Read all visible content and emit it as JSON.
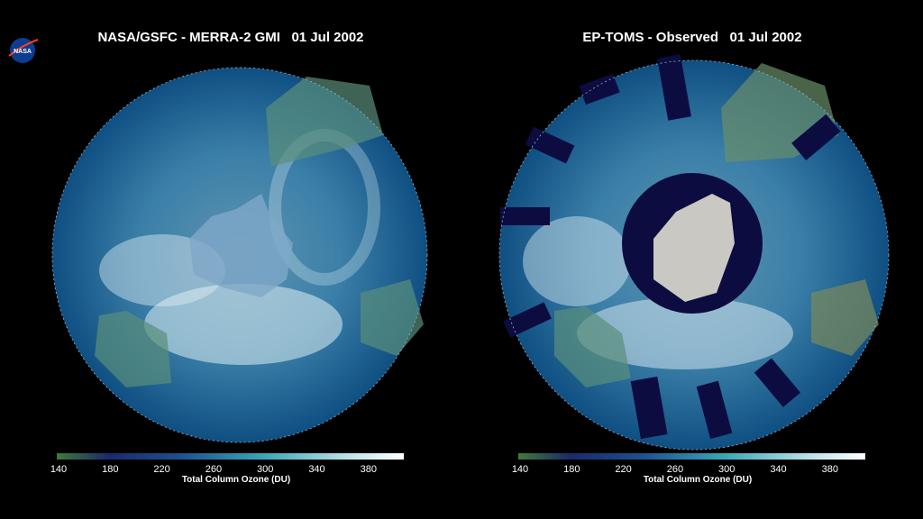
{
  "logo": "NASA",
  "panels": [
    {
      "title": "NASA/GSFC - MERRA-2 GMI   01 Jul 2002",
      "colorbar": {
        "ticks": [
          140,
          180,
          220,
          260,
          300,
          340,
          380
        ],
        "label": "Total Column Ozone (DU)"
      }
    },
    {
      "title": "EP-TOMS - Observed   01 Jul 2002",
      "colorbar": {
        "ticks": [
          140,
          180,
          220,
          260,
          300,
          340,
          380
        ],
        "label": "Total Column Ozone (DU)"
      }
    }
  ]
}
